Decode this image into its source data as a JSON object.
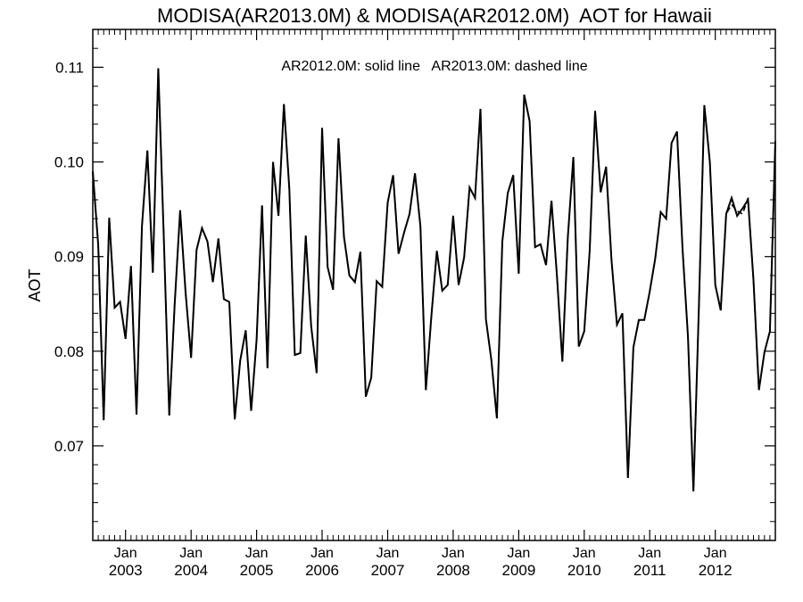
{
  "chart_data": {
    "type": "line",
    "title": "MODISA(AR2013.0M) & MODISA(AR2012.0M)  AOT for Hawaii",
    "annotation": "AR2012.0M: solid line   AR2013.0M: dashed line",
    "ylabel": "AOT",
    "xlabel": "",
    "ylim": [
      0.06,
      0.114
    ],
    "xlim": [
      "2002-07",
      "2012-12"
    ],
    "grid": false,
    "y_ticks": [
      "0.07",
      "0.08",
      "0.09",
      "0.10",
      "0.11"
    ],
    "y_tick_values": [
      0.07,
      0.08,
      0.09,
      0.1,
      0.11
    ],
    "x_tick_month": "Jan",
    "x_tick_years": [
      "2003",
      "2004",
      "2005",
      "2006",
      "2007",
      "2008",
      "2009",
      "2010",
      "2011",
      "2012"
    ],
    "series": [
      {
        "name": "AR2012.0M",
        "style": "solid",
        "color": "#000000",
        "dates": [
          "2002-07",
          "2002-08",
          "2002-09",
          "2002-10",
          "2002-11",
          "2002-12",
          "2003-01",
          "2003-02",
          "2003-03",
          "2003-04",
          "2003-05",
          "2003-06",
          "2003-07",
          "2003-08",
          "2003-09",
          "2003-10",
          "2003-11",
          "2003-12",
          "2004-01",
          "2004-02",
          "2004-03",
          "2004-04",
          "2004-05",
          "2004-06",
          "2004-07",
          "2004-08",
          "2004-09",
          "2004-10",
          "2004-11",
          "2004-12",
          "2005-01",
          "2005-02",
          "2005-03",
          "2005-04",
          "2005-05",
          "2005-06",
          "2005-07",
          "2005-08",
          "2005-09",
          "2005-10",
          "2005-11",
          "2005-12",
          "2006-01",
          "2006-02",
          "2006-03",
          "2006-04",
          "2006-05",
          "2006-06",
          "2006-07",
          "2006-08",
          "2006-09",
          "2006-10",
          "2006-11",
          "2006-12",
          "2007-01",
          "2007-02",
          "2007-03",
          "2007-04",
          "2007-05",
          "2007-06",
          "2007-07",
          "2007-08",
          "2007-09",
          "2007-10",
          "2007-11",
          "2007-12",
          "2008-01",
          "2008-02",
          "2008-03",
          "2008-04",
          "2008-05",
          "2008-06",
          "2008-07",
          "2008-08",
          "2008-09",
          "2008-10",
          "2008-11",
          "2008-12",
          "2009-01",
          "2009-02",
          "2009-03",
          "2009-04",
          "2009-05",
          "2009-06",
          "2009-07",
          "2009-08",
          "2009-09",
          "2009-10",
          "2009-11",
          "2009-12",
          "2010-01",
          "2010-02",
          "2010-03",
          "2010-04",
          "2010-05",
          "2010-06",
          "2010-07",
          "2010-08",
          "2010-09",
          "2010-10",
          "2010-11",
          "2010-12",
          "2011-01",
          "2011-02",
          "2011-03",
          "2011-04",
          "2011-05",
          "2011-06",
          "2011-07",
          "2011-08",
          "2011-09",
          "2011-10",
          "2011-11",
          "2011-12",
          "2012-01",
          "2012-02",
          "2012-03",
          "2012-04",
          "2012-05",
          "2012-06",
          "2012-07",
          "2012-08",
          "2012-09",
          "2012-10",
          "2012-11",
          "2012-12"
        ],
        "values": [
          0.099,
          0.0912,
          0.0727,
          0.0941,
          0.0846,
          0.0852,
          0.0813,
          0.089,
          0.0733,
          0.0932,
          0.1012,
          0.0883,
          0.1099,
          0.092,
          0.0732,
          0.085,
          0.0949,
          0.0862,
          0.0793,
          0.0907,
          0.093,
          0.0916,
          0.0873,
          0.0919,
          0.0855,
          0.0852,
          0.0728,
          0.079,
          0.0822,
          0.0737,
          0.0812,
          0.0954,
          0.0782,
          0.1,
          0.0943,
          0.1061,
          0.0971,
          0.0796,
          0.0798,
          0.0922,
          0.0826,
          0.0777,
          0.1036,
          0.0889,
          0.0865,
          0.1025,
          0.0921,
          0.088,
          0.0873,
          0.0905,
          0.0752,
          0.0772,
          0.0874,
          0.0868,
          0.0957,
          0.0986,
          0.0903,
          0.0925,
          0.0945,
          0.0988,
          0.0932,
          0.0759,
          0.0836,
          0.0906,
          0.0864,
          0.087,
          0.0943,
          0.087,
          0.0899,
          0.0973,
          0.0962,
          0.1056,
          0.0834,
          0.079,
          0.0729,
          0.0916,
          0.0967,
          0.0986,
          0.0882,
          0.1071,
          0.1043,
          0.091,
          0.0913,
          0.0891,
          0.0959,
          0.088,
          0.0789,
          0.092,
          0.1005,
          0.0805,
          0.0821,
          0.0906,
          0.1054,
          0.0968,
          0.0995,
          0.0896,
          0.0828,
          0.084,
          0.0666,
          0.0804,
          0.0833,
          0.0833,
          0.0863,
          0.0898,
          0.0947,
          0.094,
          0.102,
          0.1032,
          0.0908,
          0.0815,
          0.0652,
          0.0846,
          0.106,
          0.1,
          0.087,
          0.0843,
          0.0945,
          0.0962,
          0.0943,
          0.0951,
          0.096,
          0.0875,
          0.0759,
          0.0799,
          0.0821,
          0.1022
        ]
      },
      {
        "name": "AR2013.0M",
        "style": "dashed",
        "color": "#000000",
        "dates": [
          "2002-07",
          "2002-08",
          "2002-09",
          "2002-10",
          "2002-11",
          "2002-12",
          "2003-01",
          "2003-02",
          "2003-03",
          "2003-04",
          "2003-05",
          "2003-06",
          "2003-07",
          "2003-08",
          "2003-09",
          "2003-10",
          "2003-11",
          "2003-12",
          "2004-01",
          "2004-02",
          "2004-03",
          "2004-04",
          "2004-05",
          "2004-06",
          "2004-07",
          "2004-08",
          "2004-09",
          "2004-10",
          "2004-11",
          "2004-12",
          "2005-01",
          "2005-02",
          "2005-03",
          "2005-04",
          "2005-05",
          "2005-06",
          "2005-07",
          "2005-08",
          "2005-09",
          "2005-10",
          "2005-11",
          "2005-12",
          "2006-01",
          "2006-02",
          "2006-03",
          "2006-04",
          "2006-05",
          "2006-06",
          "2006-07",
          "2006-08",
          "2006-09",
          "2006-10",
          "2006-11",
          "2006-12",
          "2007-01",
          "2007-02",
          "2007-03",
          "2007-04",
          "2007-05",
          "2007-06",
          "2007-07",
          "2007-08",
          "2007-09",
          "2007-10",
          "2007-11",
          "2007-12",
          "2008-01",
          "2008-02",
          "2008-03",
          "2008-04",
          "2008-05",
          "2008-06",
          "2008-07",
          "2008-08",
          "2008-09",
          "2008-10",
          "2008-11",
          "2008-12",
          "2009-01",
          "2009-02",
          "2009-03",
          "2009-04",
          "2009-05",
          "2009-06",
          "2009-07",
          "2009-08",
          "2009-09",
          "2009-10",
          "2009-11",
          "2009-12",
          "2010-01",
          "2010-02",
          "2010-03",
          "2010-04",
          "2010-05",
          "2010-06",
          "2010-07",
          "2010-08",
          "2010-09",
          "2010-10",
          "2010-11",
          "2010-12",
          "2011-01",
          "2011-02",
          "2011-03",
          "2011-04",
          "2011-05",
          "2011-06",
          "2011-07",
          "2011-08",
          "2011-09",
          "2011-10",
          "2011-11",
          "2011-12",
          "2012-01",
          "2012-02",
          "2012-03",
          "2012-04",
          "2012-05",
          "2012-06",
          "2012-07",
          "2012-08",
          "2012-09",
          "2012-10",
          "2012-11",
          "2012-12"
        ],
        "values": [
          0.099,
          0.0912,
          0.0727,
          0.0941,
          0.0846,
          0.0852,
          0.0813,
          0.089,
          0.0733,
          0.0932,
          0.1012,
          0.0883,
          0.1099,
          0.092,
          0.0732,
          0.085,
          0.0949,
          0.0862,
          0.0793,
          0.0907,
          0.093,
          0.0916,
          0.0873,
          0.0919,
          0.0855,
          0.0852,
          0.0728,
          0.079,
          0.0822,
          0.0737,
          0.0812,
          0.0954,
          0.0782,
          0.1,
          0.0943,
          0.1061,
          0.0971,
          0.0796,
          0.0798,
          0.0922,
          0.0826,
          0.0777,
          0.1036,
          0.0889,
          0.0865,
          0.1025,
          0.0921,
          0.088,
          0.0873,
          0.0905,
          0.0752,
          0.0772,
          0.0874,
          0.0868,
          0.0957,
          0.0986,
          0.0903,
          0.0925,
          0.0945,
          0.0988,
          0.0932,
          0.0759,
          0.0836,
          0.0906,
          0.0864,
          0.087,
          0.0943,
          0.087,
          0.0899,
          0.0973,
          0.0962,
          0.1056,
          0.0834,
          0.079,
          0.0729,
          0.0916,
          0.0967,
          0.0986,
          0.0882,
          0.1071,
          0.1043,
          0.091,
          0.0913,
          0.0891,
          0.0959,
          0.088,
          0.0789,
          0.092,
          0.1005,
          0.0805,
          0.0821,
          0.0906,
          0.1054,
          0.0968,
          0.0995,
          0.0896,
          0.0828,
          0.084,
          0.0666,
          0.0804,
          0.0833,
          0.0833,
          0.0863,
          0.0898,
          0.0947,
          0.094,
          0.102,
          0.1032,
          0.0908,
          0.0815,
          0.0652,
          0.0846,
          0.106,
          0.1,
          0.087,
          0.0843,
          0.0945,
          0.0955,
          0.0948,
          0.0945,
          0.0962,
          0.0875,
          0.0759,
          0.0799,
          0.0821,
          0.1022
        ]
      }
    ]
  }
}
